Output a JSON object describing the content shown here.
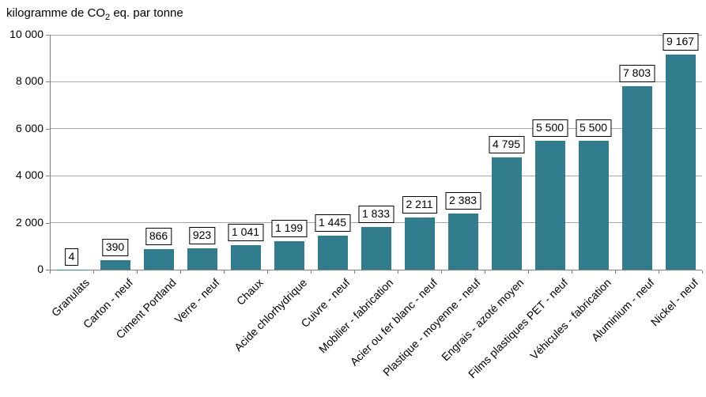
{
  "chart_data": {
    "type": "bar",
    "title": {
      "prefix": "kilogramme de CO",
      "sub": "2",
      "suffix": " eq. par tonne",
      "full": "kilogramme de CO2 eq. par tonne"
    },
    "categories": [
      "Granulats",
      "Carton - neuf",
      "Ciment Portland",
      "Verre - neuf",
      "Chaux",
      "Acide chlorhydrique",
      "Cuivre - neuf",
      "Mobilier - fabrication",
      "Acier ou fer blanc - neuf",
      "Plastique - moyenne - neuf",
      "Engrais - azoté moyen",
      "Films plastiques PET - neuf",
      "Véhicules - fabrication",
      "Aluminium - neuf",
      "Nickel - neuf"
    ],
    "values": [
      4,
      390,
      866,
      923,
      1041,
      1199,
      1445,
      1833,
      2211,
      2383,
      4795,
      5500,
      5500,
      7803,
      9167
    ],
    "value_labels": [
      "4",
      "390",
      "866",
      "923",
      "1 041",
      "1 199",
      "1 445",
      "1 833",
      "2 211",
      "2 383",
      "4 795",
      "5 500",
      "5 500",
      "7 803",
      "9 167"
    ],
    "xlabel": "",
    "ylabel": "",
    "ylim": [
      0,
      10000
    ],
    "ytick_interval": 2000,
    "ytick_labels": [
      "0",
      "2 000",
      "4 000",
      "6 000",
      "8 000",
      "10 000"
    ],
    "grid": "horizontal",
    "legend": "none"
  },
  "colors": {
    "bar": "#317D8E",
    "gridline": "#A6A6A6",
    "axis": "#808080",
    "label_border": "#000000",
    "label_bg": "#FFFFFF",
    "text": "#000000",
    "background": "#FFFFFF"
  }
}
